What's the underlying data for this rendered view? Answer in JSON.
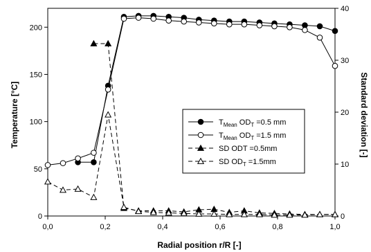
{
  "chart_data": {
    "type": "line",
    "xlabel": "Radial position r/R [-]",
    "ylabel_left": "Temperature [°C]",
    "ylabel_right": "Standard deviation [-]",
    "xlim": [
      0.0,
      1.0
    ],
    "ylim_left": [
      0,
      220
    ],
    "ylim_right": [
      0,
      40
    ],
    "x_ticks": [
      "0,0",
      "0,2",
      "0,4",
      "0,6",
      "0,8",
      "1,0"
    ],
    "y_left_ticks": [
      "0",
      "50",
      "100",
      "150",
      "200"
    ],
    "y_right_ticks": [
      "0",
      "10",
      "20",
      "30",
      "40"
    ],
    "grid": false,
    "legend_position": "center-right",
    "series": [
      {
        "name": "T_Mean OD_T =0.5 mm",
        "legend": {
          "main": "T",
          "sub1": "Mean",
          "mid": " OD",
          "sub2": "T",
          "tail": " =0.5 mm"
        },
        "axis": "left",
        "marker": "circle-filled",
        "line": "solid",
        "color": "#000000",
        "x": [
          0.105,
          0.16,
          0.21,
          0.265,
          0.316,
          0.368,
          0.421,
          0.474,
          0.526,
          0.579,
          0.632,
          0.684,
          0.737,
          0.789,
          0.842,
          0.895,
          0.947,
          1.0
        ],
        "y": [
          57,
          57,
          138,
          211,
          212,
          212,
          211,
          210,
          208,
          207,
          206,
          206,
          205,
          204,
          203,
          202,
          201,
          196
        ]
      },
      {
        "name": "T_Mean OD_T =1.5 mm",
        "legend": {
          "main": "T",
          "sub1": "Mean",
          "mid": " OD",
          "sub2": "T",
          "tail": " =1.5 mm"
        },
        "axis": "left",
        "marker": "circle-open",
        "line": "solid",
        "color": "#000000",
        "x": [
          0.0,
          0.053,
          0.105,
          0.16,
          0.21,
          0.265,
          0.316,
          0.368,
          0.421,
          0.474,
          0.526,
          0.579,
          0.632,
          0.684,
          0.737,
          0.789,
          0.842,
          0.895,
          0.947,
          1.0
        ],
        "y": [
          54,
          56,
          61,
          67,
          134,
          209,
          210,
          209,
          207,
          206,
          205,
          204,
          203,
          203,
          202,
          201,
          200,
          197,
          189,
          159
        ]
      },
      {
        "name": "SD ODT =0.5mm",
        "legend": {
          "main": "SD ODT =0.5mm"
        },
        "axis": "right",
        "marker": "triangle-filled",
        "line": "dashed",
        "color": "#000000",
        "x": [
          0.16,
          0.21,
          0.265,
          0.316,
          0.368,
          0.421,
          0.474,
          0.526,
          0.579,
          0.632,
          0.684,
          0.737,
          0.789,
          0.842,
          0.895,
          0.947,
          1.0
        ],
        "y": [
          33.2,
          33.2,
          1.5,
          1.0,
          1.0,
          1.0,
          0.8,
          1.2,
          1.3,
          0.7,
          1.0,
          0.6,
          0.5,
          0.4,
          0.3,
          0.3,
          0.3
        ]
      },
      {
        "name": "SD OD_T =1.5mm",
        "legend": {
          "main": "SD OD",
          "sub2": "T",
          "tail": " =1.5mm"
        },
        "axis": "right",
        "marker": "triangle-open",
        "line": "dashed",
        "color": "#000000",
        "x": [
          0.0,
          0.053,
          0.105,
          0.16,
          0.21,
          0.265,
          0.316,
          0.368,
          0.421,
          0.474,
          0.526,
          0.579,
          0.632,
          0.684,
          0.737,
          0.789,
          0.842,
          0.895,
          0.947,
          1.0
        ],
        "y": [
          6.6,
          5.0,
          5.2,
          3.6,
          19.5,
          1.7,
          0.9,
          0.7,
          0.6,
          0.5,
          0.4,
          0.4,
          0.3,
          0.3,
          0.3,
          0.2,
          0.2,
          0.2,
          0.3,
          0.3
        ]
      }
    ]
  }
}
